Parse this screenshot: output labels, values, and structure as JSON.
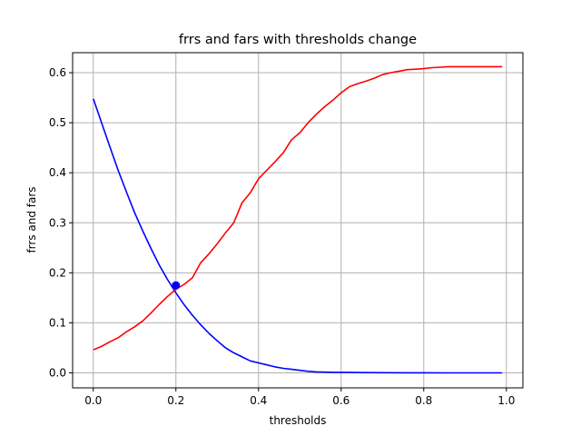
{
  "chart_data": {
    "type": "line",
    "title": "frrs and fars with thresholds change",
    "xlabel": "thresholds",
    "ylabel": "frrs and fars",
    "xlim": [
      -0.05,
      1.04
    ],
    "ylim": [
      -0.03,
      0.64
    ],
    "xticks": [
      0.0,
      0.2,
      0.4,
      0.6,
      0.8,
      1.0
    ],
    "xtick_labels": [
      "0.0",
      "0.2",
      "0.4",
      "0.6",
      "0.8",
      "1.0"
    ],
    "yticks": [
      0.0,
      0.1,
      0.2,
      0.3,
      0.4,
      0.5,
      0.6
    ],
    "ytick_labels": [
      "0.0",
      "0.1",
      "0.2",
      "0.3",
      "0.4",
      "0.5",
      "0.6"
    ],
    "grid": true,
    "series": [
      {
        "color": "#0000ff",
        "x": [
          0.0,
          0.02,
          0.04,
          0.06,
          0.08,
          0.1,
          0.12,
          0.14,
          0.16,
          0.18,
          0.2,
          0.22,
          0.24,
          0.26,
          0.28,
          0.3,
          0.32,
          0.34,
          0.36,
          0.38,
          0.4,
          0.42,
          0.44,
          0.46,
          0.48,
          0.5,
          0.52,
          0.54,
          0.56,
          0.58,
          0.6,
          0.65,
          0.7,
          0.75,
          0.8,
          0.85,
          0.9,
          0.95,
          0.99
        ],
        "y": [
          0.548,
          0.5,
          0.452,
          0.405,
          0.362,
          0.32,
          0.283,
          0.248,
          0.215,
          0.186,
          0.16,
          0.136,
          0.115,
          0.096,
          0.079,
          0.064,
          0.05,
          0.04,
          0.032,
          0.024,
          0.02,
          0.016,
          0.012,
          0.009,
          0.007,
          0.005,
          0.003,
          0.002,
          0.0015,
          0.001,
          0.001,
          0.0005,
          0.0003,
          0.0002,
          0.0001,
          0.0,
          0.0,
          0.0,
          0.0
        ]
      },
      {
        "color": "#ff0000",
        "x": [
          0.0,
          0.02,
          0.04,
          0.06,
          0.08,
          0.1,
          0.12,
          0.14,
          0.16,
          0.18,
          0.2,
          0.22,
          0.24,
          0.26,
          0.28,
          0.3,
          0.32,
          0.34,
          0.36,
          0.38,
          0.4,
          0.42,
          0.44,
          0.46,
          0.48,
          0.5,
          0.52,
          0.54,
          0.56,
          0.58,
          0.6,
          0.62,
          0.64,
          0.66,
          0.68,
          0.7,
          0.72,
          0.74,
          0.76,
          0.78,
          0.8,
          0.82,
          0.84,
          0.86,
          0.9,
          0.95,
          0.99
        ],
        "y": [
          0.046,
          0.053,
          0.062,
          0.07,
          0.082,
          0.092,
          0.104,
          0.12,
          0.137,
          0.153,
          0.167,
          0.177,
          0.19,
          0.22,
          0.238,
          0.258,
          0.28,
          0.3,
          0.34,
          0.36,
          0.388,
          0.405,
          0.422,
          0.44,
          0.466,
          0.48,
          0.5,
          0.517,
          0.532,
          0.545,
          0.56,
          0.572,
          0.578,
          0.583,
          0.589,
          0.596,
          0.6,
          0.603,
          0.606,
          0.607,
          0.608,
          0.61,
          0.611,
          0.612,
          0.612,
          0.612,
          0.612
        ]
      }
    ],
    "marker": {
      "x": 0.2,
      "y": 0.175,
      "color": "#0000ff"
    }
  }
}
